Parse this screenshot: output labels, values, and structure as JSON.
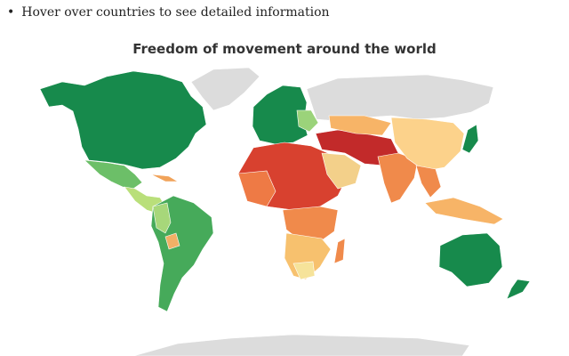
{
  "page": {
    "bullet": "Hover over countries to see detailed information",
    "title": "Freedom of movement around the world"
  }
}
